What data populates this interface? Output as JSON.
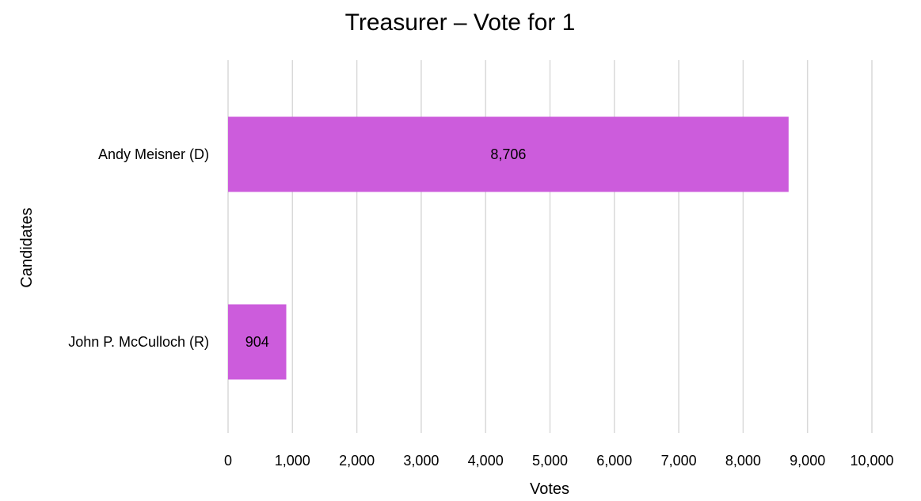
{
  "chart_data": {
    "type": "bar",
    "orientation": "horizontal",
    "title": "Treasurer – Vote for 1",
    "xlabel": "Votes",
    "ylabel": "Candidates",
    "categories": [
      "Andy Meisner (D)",
      "John P. McCulloch (R)"
    ],
    "values": [
      8706,
      904
    ],
    "data_labels": [
      "8,706",
      "904"
    ],
    "xlim": [
      0,
      10000
    ],
    "x_ticks": [
      0,
      1000,
      2000,
      3000,
      4000,
      5000,
      6000,
      7000,
      8000,
      9000,
      10000
    ],
    "x_tick_labels": [
      "0",
      "1,000",
      "2,000",
      "3,000",
      "4,000",
      "5,000",
      "6,000",
      "7,000",
      "8,000",
      "9,000",
      "10,000"
    ],
    "grid": true,
    "legend": "none",
    "colors": {
      "bar": "#cc5cdc",
      "grid": "#d9d9d9",
      "text": "#000000",
      "background": "#ffffff"
    }
  }
}
